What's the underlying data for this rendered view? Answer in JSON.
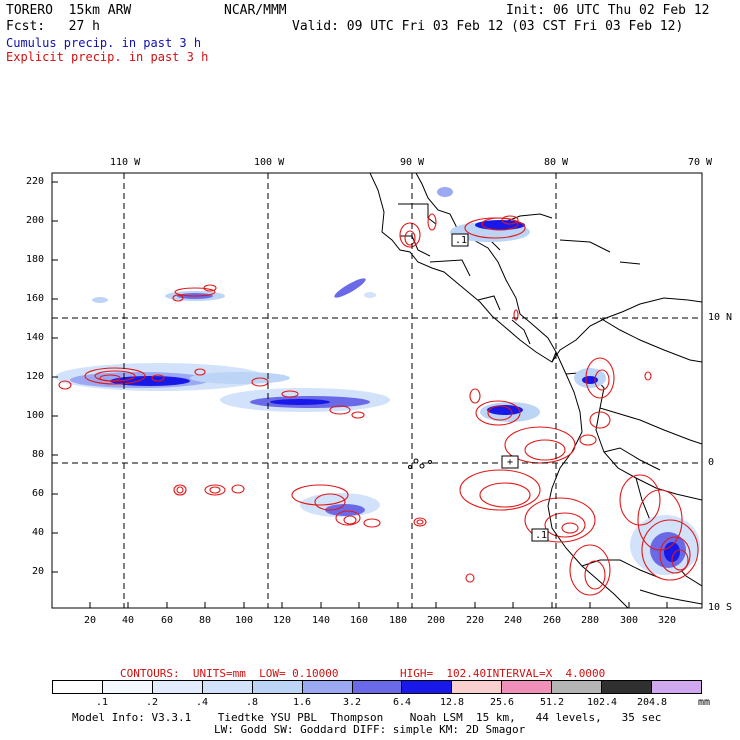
{
  "header": {
    "model": "TORERO  15km ARW",
    "center": "NCAR/MMM",
    "init": "Init: 06 UTC Thu 02 Feb 12",
    "fcst": "Fcst:   27 h",
    "valid": "Valid: 09 UTC Fri 03 Feb 12 (03 CST Fri 03 Feb 12)",
    "cumulus_label": "Cumulus precip. in past 3 h",
    "explicit_label": "Explicit precip. in past 3 h"
  },
  "colors": {
    "cumulus": "#1010b0",
    "explicit": "#d01010",
    "contour": "#e01818",
    "coast": "#000000"
  },
  "map": {
    "lon_labels": [
      "110 W",
      "100 W",
      "90 W",
      "80 W",
      "70 W"
    ],
    "lat_labels": [
      "10 N",
      "0",
      "10 S"
    ],
    "y_ticks": [
      "220",
      "200",
      "180",
      "160",
      "140",
      "120",
      "100",
      "80",
      "60",
      "40",
      "20"
    ],
    "x_ticks": [
      "20",
      "40",
      "60",
      "80",
      "100",
      "120",
      "140",
      "160",
      "180",
      "200",
      "220",
      "240",
      "260",
      "280",
      "300",
      "320"
    ],
    "point_labels": [
      ".1",
      "+",
      ".1"
    ]
  },
  "contour_info": {
    "contours": "CONTOURS:  UNITS=mm  LOW= 0.10000",
    "high": "HIGH=  102.40",
    "interval": "INTERVAL=X  4.0000"
  },
  "colorbar": {
    "unit": "mm",
    "colors": [
      "#ffffff",
      "#f4f8ff",
      "#e2ecfc",
      "#d2e2fa",
      "#bcd4f6",
      "#9ca8f2",
      "#6a6ae8",
      "#1818e8",
      "#f8d0d0",
      "#f090b8",
      "#b4b4b4",
      "#303030",
      "#d0a8f0"
    ],
    "labels": [
      ".1",
      ".2",
      ".4",
      ".8",
      "1.6",
      "3.2",
      "6.4",
      "12.8",
      "25.6",
      "51.2",
      "102.4",
      "204.8"
    ]
  },
  "footer": {
    "line1": "Model Info: V3.3.1    Tiedtke YSU PBL  Thompson    Noah LSM  15 km,   44 levels,   35 sec",
    "line2": "LW: Godd SW: Goddard DIFF: simple KM: 2D Smagor"
  }
}
